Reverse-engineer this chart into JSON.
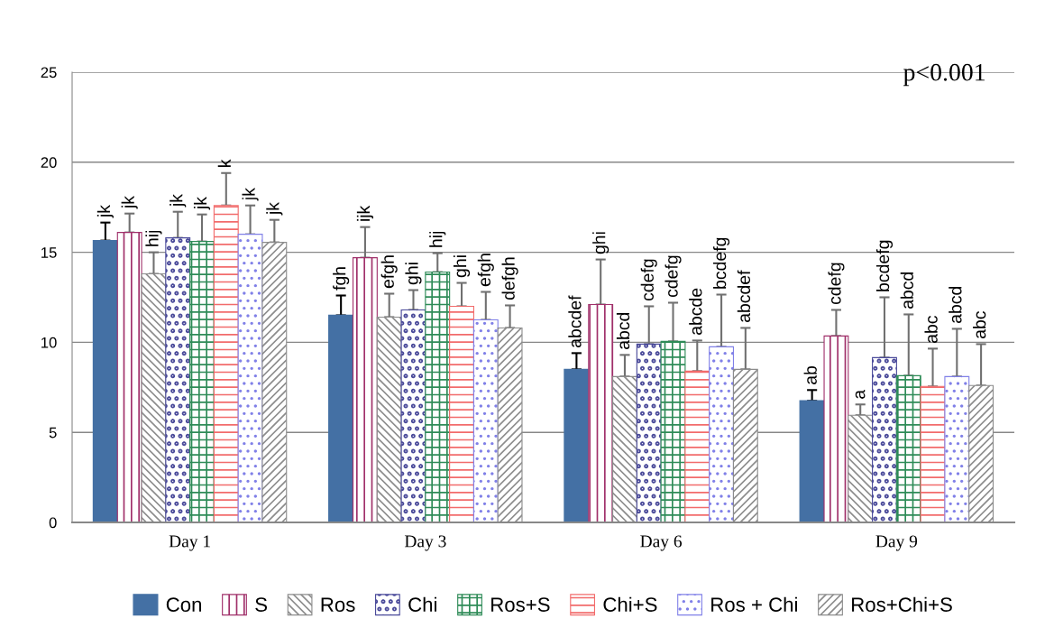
{
  "chart_data": {
    "type": "bar",
    "categories": [
      "Day 1",
      "Day 3",
      "Day 6",
      "Day 9"
    ],
    "ylim": [
      0,
      25
    ],
    "yticks": [
      0,
      5,
      10,
      15,
      20,
      25
    ],
    "grid": "y",
    "legend": "bottom",
    "annotations": [
      "p<0.001",
      "jk",
      "jk",
      "hij",
      "jk",
      "jk",
      "k",
      "jk",
      "jk",
      "fgh",
      "ijk",
      "efgh",
      "ghi",
      "hij",
      "ghi",
      "efgh",
      "defgh",
      "abcdef",
      "ghi",
      "abcd",
      "cdefg",
      "cdefg",
      "abcde",
      "bcdefg",
      "abcdef",
      "ab",
      "cdefg",
      "a",
      "bcdefg",
      "abcd",
      "abc",
      "abcd",
      "abc"
    ],
    "series": [
      {
        "name": "Con",
        "color": "#4470a4",
        "values": [
          15.65,
          11.5,
          8.5,
          6.75
        ],
        "errors": [
          [
            15.65,
            16.65
          ],
          [
            11.5,
            12.6
          ],
          [
            8.5,
            9.4
          ],
          [
            6.75,
            7.35
          ]
        ]
      },
      {
        "name": "S",
        "color": "#a0306a",
        "values": [
          16.1,
          14.7,
          12.1,
          10.35
        ],
        "errors": [
          [
            16.1,
            17.15
          ],
          [
            14.7,
            16.4
          ],
          [
            12.1,
            14.6
          ],
          [
            10.35,
            11.8
          ]
        ]
      },
      {
        "name": "Ros",
        "color": "#8c8c8c",
        "values": [
          13.8,
          11.4,
          8.1,
          5.95
        ],
        "errors": [
          [
            13.8,
            15.0
          ],
          [
            11.4,
            12.7
          ],
          [
            8.1,
            9.3
          ],
          [
            5.95,
            6.55
          ]
        ]
      },
      {
        "name": "Chi",
        "color": "#4a4a9a",
        "values": [
          15.8,
          11.8,
          9.9,
          9.15
        ],
        "errors": [
          [
            15.8,
            17.25
          ],
          [
            11.8,
            12.9
          ],
          [
            9.9,
            12.0
          ],
          [
            9.15,
            12.5
          ]
        ]
      },
      {
        "name": "Ros+S",
        "color": "#2e8b57",
        "values": [
          15.6,
          13.9,
          10.05,
          8.15
        ],
        "errors": [
          [
            15.6,
            17.1
          ],
          [
            13.9,
            14.95
          ],
          [
            10.05,
            12.2
          ],
          [
            8.15,
            11.55
          ]
        ]
      },
      {
        "name": "Chi+S",
        "color": "#f26b6b",
        "values": [
          17.6,
          12.0,
          8.4,
          7.55
        ],
        "errors": [
          [
            17.6,
            19.4
          ],
          [
            12.0,
            13.3
          ],
          [
            8.4,
            10.1
          ],
          [
            7.55,
            9.65
          ]
        ]
      },
      {
        "name": "Ros + Chi",
        "color": "#8080e8",
        "values": [
          16.0,
          11.25,
          9.75,
          8.1
        ],
        "errors": [
          [
            16.0,
            17.6
          ],
          [
            11.25,
            12.8
          ],
          [
            9.75,
            12.65
          ],
          [
            8.1,
            10.75
          ]
        ]
      },
      {
        "name": "Ros+Chi+S",
        "color": "#8c8c8c",
        "values": [
          15.55,
          10.8,
          8.5,
          7.6
        ],
        "errors": [
          [
            15.55,
            16.8
          ],
          [
            10.8,
            12.05
          ],
          [
            8.5,
            10.8
          ],
          [
            7.6,
            9.9
          ]
        ]
      }
    ]
  }
}
